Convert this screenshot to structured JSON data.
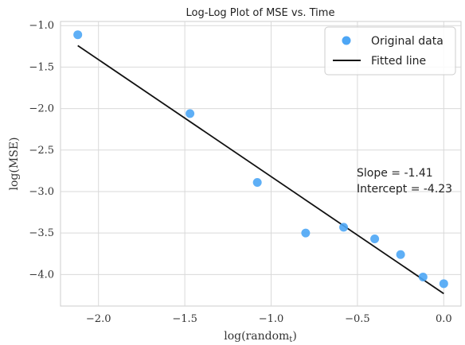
{
  "chart_data": {
    "type": "scatter",
    "title": "Log-Log Plot of MSE vs. Time",
    "xlabel": "log(random",
    "xlabel_sub": "t",
    "xlabel_close": ")",
    "ylabel": "log(MSE)",
    "xlim": [
      -2.22,
      0.1
    ],
    "ylim": [
      -4.38,
      -0.95
    ],
    "xticks": [
      -2.0,
      -1.5,
      -1.0,
      -0.5,
      0.0
    ],
    "xtick_labels": [
      "−2.0",
      "−1.5",
      "−1.0",
      "−0.5",
      "0.0"
    ],
    "yticks": [
      -1.0,
      -1.5,
      -2.0,
      -2.5,
      -3.0,
      -3.5,
      -4.0
    ],
    "ytick_labels": [
      "−1.0",
      "−1.5",
      "−2.0",
      "−2.5",
      "−3.0",
      "−3.5",
      "−4.0"
    ],
    "grid": true,
    "legend_position": "top-right",
    "series": [
      {
        "name": "Original data",
        "kind": "scatter",
        "color": "#4da6f5",
        "points": [
          {
            "x": -2.12,
            "y": -1.11
          },
          {
            "x": -1.47,
            "y": -2.06
          },
          {
            "x": -1.08,
            "y": -2.89
          },
          {
            "x": -0.8,
            "y": -3.5
          },
          {
            "x": -0.58,
            "y": -3.43
          },
          {
            "x": -0.4,
            "y": -3.57
          },
          {
            "x": -0.25,
            "y": -3.76
          },
          {
            "x": -0.12,
            "y": -4.03
          },
          {
            "x": 0.0,
            "y": -4.11
          }
        ]
      },
      {
        "name": "Fitted line",
        "kind": "line",
        "color": "#111111",
        "slope": -1.41,
        "intercept": -4.23,
        "x_range": [
          -2.12,
          0.0
        ]
      }
    ],
    "annotations": [
      "Slope = -1.41",
      "Intercept = -4.23"
    ]
  }
}
